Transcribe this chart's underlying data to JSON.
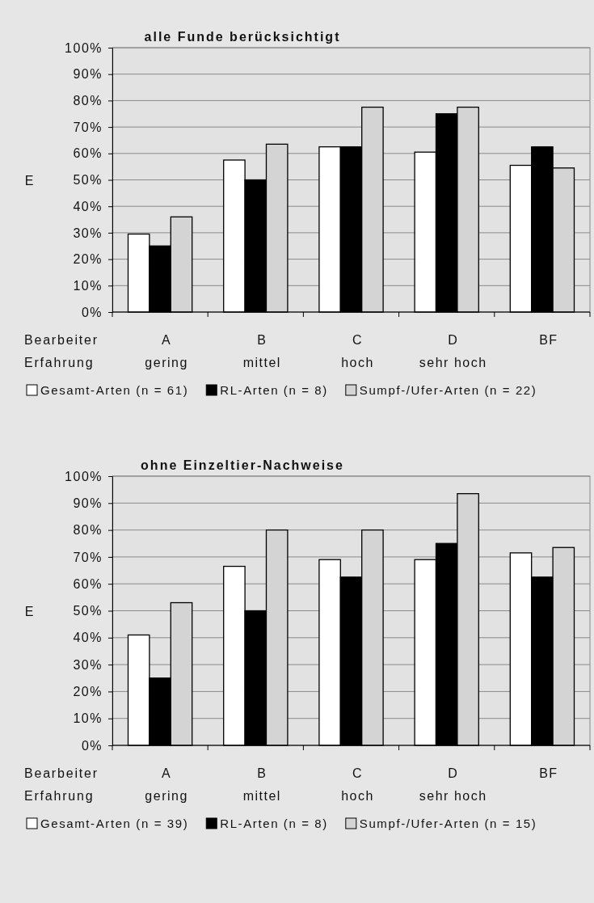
{
  "chart_data": [
    {
      "type": "bar",
      "title": "alle Funde berücksichtigt",
      "ylabel": "E",
      "xlabel": "Bearbeiter\nErfahrung",
      "categories": [
        "A\ngering",
        "B\nmittel",
        "C\nhoch",
        "D\nsehr hoch",
        "BF"
      ],
      "series": [
        {
          "name": "Gesamt-Arten (n = 61)",
          "color": "#ffffff",
          "values": [
            29.5,
            57.5,
            62.5,
            60.5,
            55.5
          ]
        },
        {
          "name": "RL-Arten (n = 8)",
          "color": "#000000",
          "values": [
            25,
            50,
            62.5,
            75,
            62.5
          ]
        },
        {
          "name": "Sumpf-/Ufer-Arten (n = 22)",
          "color": "#d4d4d4",
          "values": [
            36,
            63.5,
            77.5,
            77.5,
            54.5
          ]
        }
      ],
      "ylim": [
        0,
        100
      ],
      "yticks": [
        {
          "value": 0,
          "label": "0%"
        },
        {
          "value": 10,
          "label": "10%"
        },
        {
          "value": 20,
          "label": "20%"
        },
        {
          "value": 30,
          "label": "30%"
        },
        {
          "value": 40,
          "label": "40%"
        },
        {
          "value": 50,
          "label": "50%"
        },
        {
          "value": 60,
          "label": "60%"
        },
        {
          "value": 70,
          "label": "70%"
        },
        {
          "value": 80,
          "label": "80%"
        },
        {
          "value": 90,
          "label": "90%"
        },
        {
          "value": 100,
          "label": "100%"
        }
      ],
      "grid": "y",
      "legend": "bottom"
    },
    {
      "type": "bar",
      "title": "ohne Einzeltier-Nachweise",
      "ylabel": "E",
      "xlabel": "Bearbeiter\nErfahrung",
      "categories": [
        "A\ngering",
        "B\nmittel",
        "C\nhoch",
        "D\nsehr hoch",
        "BF"
      ],
      "series": [
        {
          "name": "Gesamt-Arten (n = 39)",
          "color": "#ffffff",
          "values": [
            41,
            66.5,
            69,
            69,
            71.5
          ]
        },
        {
          "name": "RL-Arten (n = 8)",
          "color": "#000000",
          "values": [
            25,
            50,
            62.5,
            75,
            62.5
          ]
        },
        {
          "name": "Sumpf-/Ufer-Arten (n = 15)",
          "color": "#d4d4d4",
          "values": [
            53,
            80,
            80,
            93.5,
            73.5
          ]
        }
      ],
      "ylim": [
        0,
        100
      ],
      "yticks": [
        {
          "value": 0,
          "label": "0%"
        },
        {
          "value": 10,
          "label": "10%"
        },
        {
          "value": 20,
          "label": "20%"
        },
        {
          "value": 30,
          "label": "30%"
        },
        {
          "value": 40,
          "label": "40%"
        },
        {
          "value": 50,
          "label": "50%"
        },
        {
          "value": 60,
          "label": "60%"
        },
        {
          "value": 70,
          "label": "70%"
        },
        {
          "value": 80,
          "label": "80%"
        },
        {
          "value": 90,
          "label": "90%"
        },
        {
          "value": 100,
          "label": "100%"
        }
      ],
      "grid": "y",
      "legend": "bottom"
    }
  ]
}
